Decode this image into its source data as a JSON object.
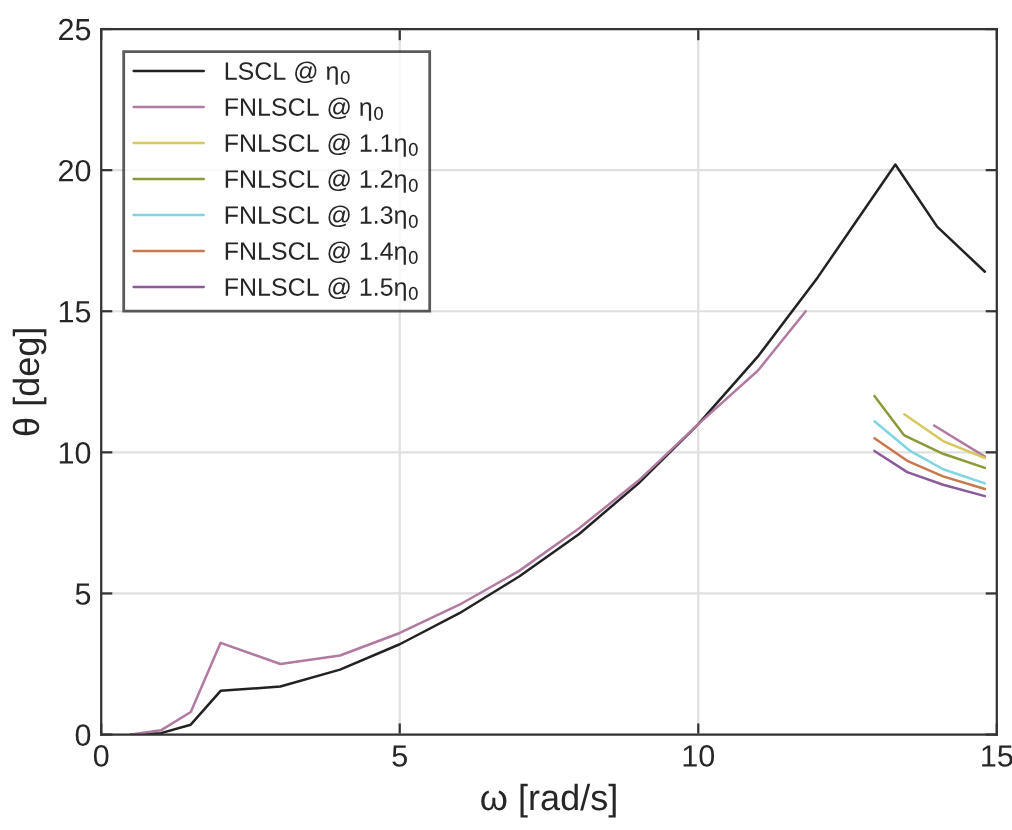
{
  "chart_data": {
    "type": "line",
    "xlabel": "ω [rad/s]",
    "ylabel": "θ [deg]",
    "xlim": [
      0,
      15
    ],
    "ylim": [
      0,
      25
    ],
    "xticks": [
      0,
      5,
      10,
      15
    ],
    "yticks": [
      0,
      5,
      10,
      15,
      20,
      25
    ],
    "grid": true,
    "legend": "top left",
    "series": [
      {
        "name": "LSCL @ η$_{0}$",
        "color": "#222222",
        "x": [
          0.5,
          1,
          1.5,
          2,
          3,
          4,
          5,
          6,
          7,
          8,
          9,
          10,
          11,
          12,
          13.3,
          14,
          14.8
        ],
        "values": [
          0,
          0.05,
          0.35,
          1.55,
          1.7,
          2.3,
          3.2,
          4.3,
          5.6,
          7.1,
          8.9,
          11.0,
          13.4,
          16.2,
          20.2,
          18.0,
          16.4
        ]
      },
      {
        "name": "FNLSCL @ η$_{0}$",
        "color": "#b07aa1",
        "x": [
          0.5,
          1,
          1.5,
          2,
          3,
          4,
          5,
          6,
          7,
          8,
          9,
          10,
          11,
          11.8,
          12.9,
          13.95,
          14.8
        ],
        "values": [
          0,
          0.15,
          0.8,
          3.25,
          2.5,
          2.8,
          3.6,
          4.6,
          5.8,
          7.3,
          9.0,
          11.0,
          12.9,
          15.0,
          null,
          10.95,
          9.85
        ]
      },
      {
        "name": "FNLSCL @ 1.1η$_{0}$",
        "color": "#d8c860",
        "x": [
          13.45,
          14.1,
          14.8
        ],
        "values": [
          11.35,
          10.4,
          9.8
        ]
      },
      {
        "name": "FNLSCL @ 1.2η$_{0}$",
        "color": "#8a9a3a",
        "x": [
          12.95,
          13.45,
          14.1,
          14.8
        ],
        "values": [
          12.0,
          10.6,
          9.95,
          9.45
        ]
      },
      {
        "name": "FNLSCL @ 1.3η$_{0}$",
        "color": "#7fd6e0",
        "x": [
          12.95,
          13.55,
          14.1,
          14.8
        ],
        "values": [
          11.1,
          10.05,
          9.4,
          8.9
        ]
      },
      {
        "name": "FNLSCL @ 1.4η$_{0}$",
        "color": "#c8784a",
        "x": [
          12.95,
          13.5,
          14.1,
          14.8
        ],
        "values": [
          10.5,
          9.7,
          9.15,
          8.7
        ]
      },
      {
        "name": "FNLSCL @ 1.5η$_{0}$",
        "color": "#8a5a9a",
        "x": [
          12.95,
          13.5,
          14.1,
          14.8
        ],
        "values": [
          10.05,
          9.3,
          8.85,
          8.45
        ]
      }
    ]
  }
}
